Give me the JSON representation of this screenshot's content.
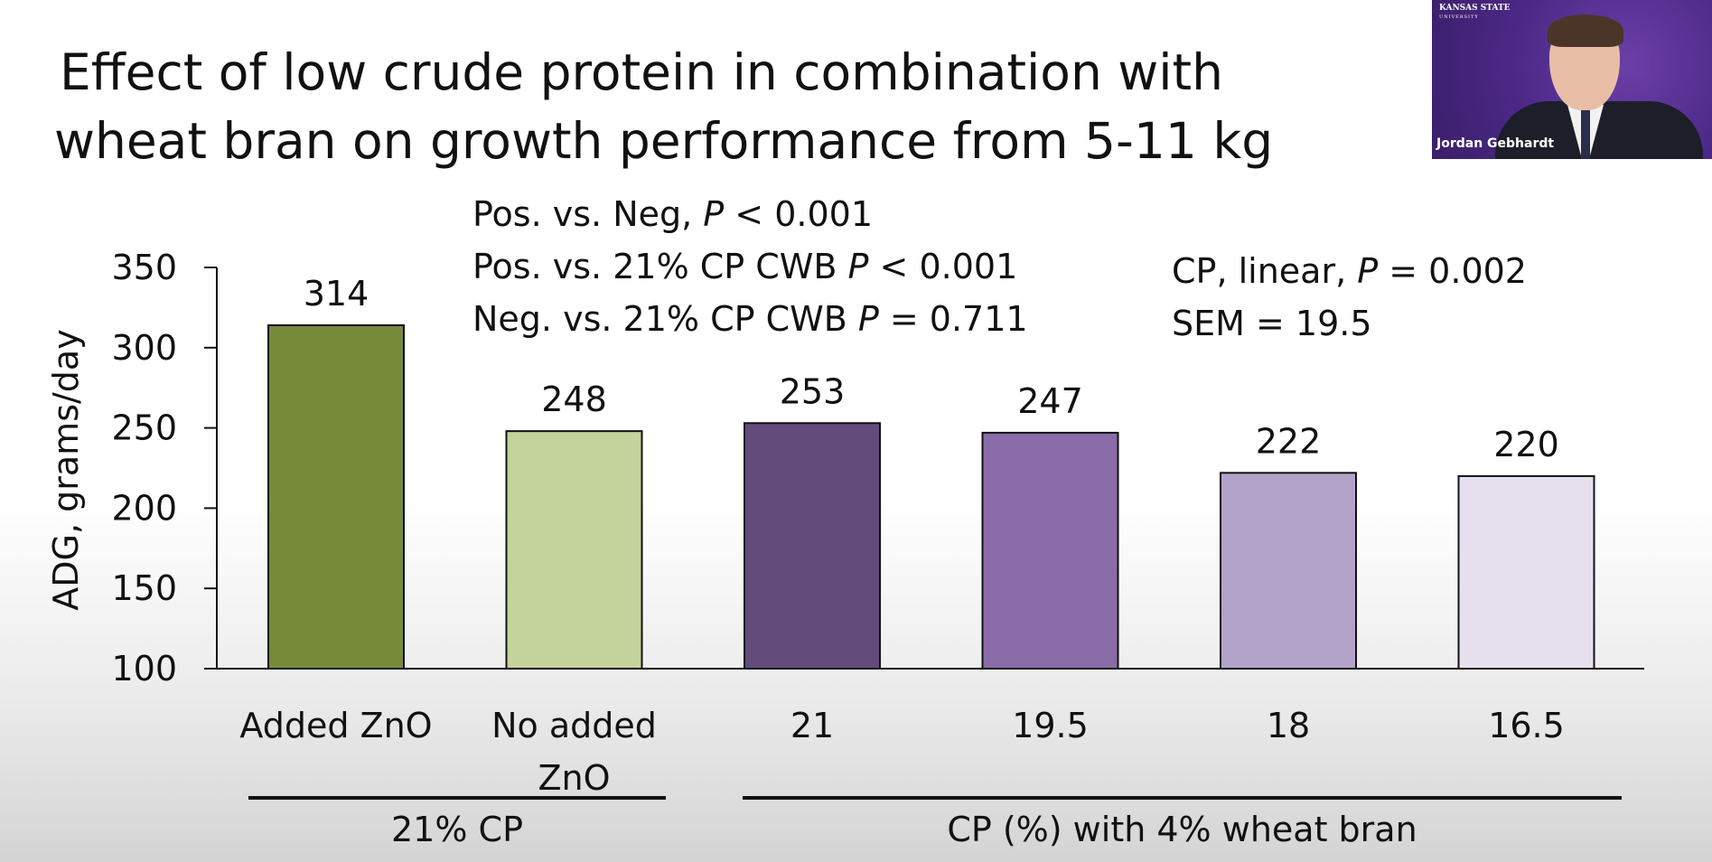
{
  "slide": {
    "title_line1": "Effect of low crude protein in combination with",
    "title_line2": "wheat bran on growth performance from 5-11 kg"
  },
  "stats_left": [
    {
      "text": "Pos. vs. Neg, ",
      "p_label": "P",
      "rest": " < 0.001"
    },
    {
      "text": "Pos. vs. 21% CP CWB ",
      "p_label": "P",
      "rest": " < 0.001"
    },
    {
      "text": "Neg. vs. 21% CP CWB ",
      "p_label": "P",
      "rest": " = 0.711"
    }
  ],
  "stats_right": [
    {
      "text": "CP, linear, ",
      "p_label": "P",
      "rest": " = 0.002"
    },
    {
      "text": "SEM = 19.5",
      "p_label": "",
      "rest": ""
    }
  ],
  "webcam": {
    "brand_line1": "KANSAS STATE",
    "brand_line2": "UNIVERSITY",
    "name": "Jordan Gebhardt",
    "icon": "webcam-video-feed"
  },
  "chart_data": {
    "type": "bar",
    "title": "Effect of low crude protein in combination with wheat bran on growth performance from 5-11 kg",
    "ylabel": "ADG, grams/day",
    "xlabel": "",
    "ylim": [
      100,
      350
    ],
    "yticks": [
      100,
      150,
      200,
      250,
      300,
      350
    ],
    "grid": false,
    "categories": [
      "Added ZnO",
      "No added ZnO",
      "21",
      "19.5",
      "18",
      "16.5"
    ],
    "values": [
      314,
      248,
      253,
      247,
      222,
      220
    ],
    "data_labels": [
      "314",
      "248",
      "253",
      "247",
      "222",
      "220"
    ],
    "category_label_lines": [
      [
        "Added ZnO"
      ],
      [
        "No added",
        "ZnO"
      ],
      [
        "21"
      ],
      [
        "19.5"
      ],
      [
        "18"
      ],
      [
        "16.5"
      ]
    ],
    "colors": [
      "#768a39",
      "#c4d39c",
      "#634c7c",
      "#8a6ca8",
      "#b3a3c9",
      "#e6e0ee"
    ],
    "groups": [
      {
        "label": "21% CP",
        "from": 0,
        "to": 1
      },
      {
        "label": "CP (%) with 4% wheat bran",
        "from": 2,
        "to": 5
      }
    ]
  }
}
